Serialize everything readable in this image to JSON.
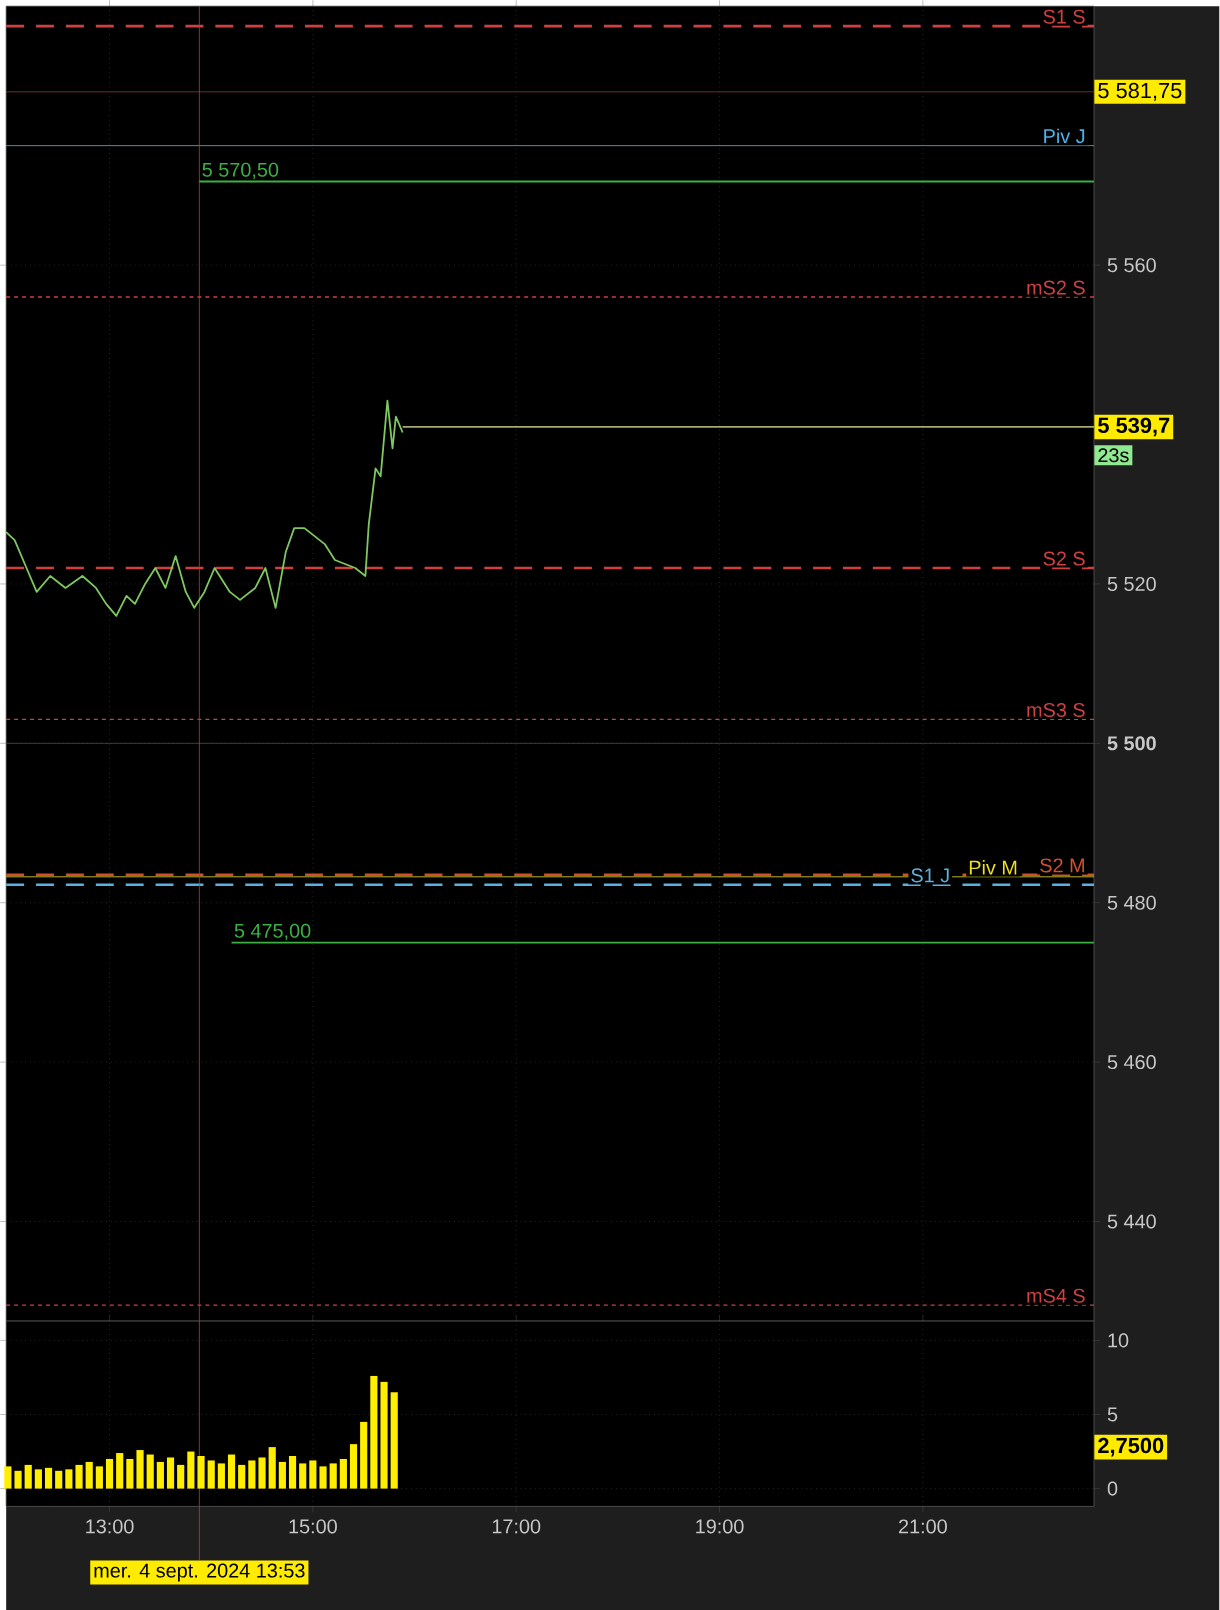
{
  "chart_data": [
    {
      "type": "line",
      "x": [
        "2024-09-04T11:59",
        "2024-09-04T12:04",
        "2024-09-04T12:11",
        "2024-09-04T12:17",
        "2024-09-04T12:25",
        "2024-09-04T12:34",
        "2024-09-04T12:44",
        "2024-09-04T12:52",
        "2024-09-04T12:58",
        "2024-09-04T13:04",
        "2024-09-04T13:10",
        "2024-09-04T13:15",
        "2024-09-04T13:21",
        "2024-09-04T13:27",
        "2024-09-04T13:33",
        "2024-09-04T13:39",
        "2024-09-04T13:45",
        "2024-09-04T13:50",
        "2024-09-04T13:56",
        "2024-09-04T14:02",
        "2024-09-04T14:11",
        "2024-09-04T14:17",
        "2024-09-04T14:26",
        "2024-09-04T14:32",
        "2024-09-04T14:38",
        "2024-09-04T14:44",
        "2024-09-04T14:49",
        "2024-09-04T14:55",
        "2024-09-04T15:01",
        "2024-09-04T15:07",
        "2024-09-04T15:13",
        "2024-09-04T15:19",
        "2024-09-04T15:25",
        "2024-09-04T15:31",
        "2024-09-04T15:33",
        "2024-09-04T15:37",
        "2024-09-04T15:40",
        "2024-09-04T15:44",
        "2024-09-04T15:47",
        "2024-09-04T15:49",
        "2024-09-04T15:53"
      ],
      "series": [
        {
          "color": "#7fc860",
          "values": [
            5526.5,
            5525.5,
            5522,
            5519,
            5521,
            5519.5,
            5521,
            5519.5,
            5517.5,
            5516,
            5518.5,
            5517.5,
            5520,
            5522,
            5519.5,
            5523.5,
            5519,
            5517,
            5519,
            5522,
            5519,
            5518,
            5519.5,
            5522,
            5517,
            5524,
            5527,
            5527,
            5526,
            5525,
            5523,
            5522.5,
            5522,
            5521,
            5527.5,
            5534.5,
            5533.5,
            5543,
            5537,
            5541,
            5539
          ]
        },
        {
          "color": "#a8a870",
          "x": [
            "2024-09-04T15:53",
            "2024-09-04T22:41"
          ],
          "values": [
            5539.7,
            5539.7
          ]
        },
        {
          "color": "#3cb043",
          "x": [
            "2024-09-04T13:53",
            "2024-09-04T22:41"
          ],
          "values": [
            5570.5,
            5570.5
          ]
        },
        {
          "color": "#3cb043",
          "x": [
            "2024-09-04T14:12",
            "2024-09-04T22:41"
          ],
          "values": [
            5475,
            5475
          ]
        }
      ],
      "xlim": [
        "2024-09-04T11:59",
        "2024-09-04T22:41"
      ],
      "ylim": [
        5427.5,
        5592.5
      ],
      "xticks": [
        {
          "value": "2024-09-04T13:00",
          "label": null
        },
        {
          "value": "2024-09-04T15:00",
          "label": null
        },
        {
          "value": "2024-09-04T17:00",
          "label": null
        },
        {
          "value": "2024-09-04T19:00",
          "label": null
        },
        {
          "value": "2024-09-04T21:00",
          "label": null
        }
      ],
      "yticks": [
        {
          "value": 5440,
          "label": "5 440"
        },
        {
          "value": 5460,
          "label": "5 460"
        },
        {
          "value": 5480,
          "label": "5 480"
        },
        {
          "value": 5500,
          "label": "**5 500**"
        },
        {
          "value": 5520,
          "label": "5 520"
        },
        {
          "value": 5560,
          "label": "5 560"
        }
      ],
      "tick_labels": "y",
      "grid": true,
      "ref_lines": [
        {
          "axis": "y",
          "value": 5590,
          "label": "S1 S",
          "color": "#d04040",
          "line_style": "dashed"
        },
        {
          "axis": "y",
          "value": 5581.75,
          "color": "#8b3a3a",
          "line_style": "solid"
        },
        {
          "axis": "y",
          "value": 5575,
          "label": "Piv J",
          "color": "#4fb3ea",
          "line_style": "solid"
        },
        {
          "axis": "y",
          "value": 5556,
          "label": "mS2 S",
          "color": "#d04040",
          "line_style": "dotted"
        },
        {
          "axis": "y",
          "value": 5522,
          "label": "S2 S",
          "color": "#d04040",
          "line_style": "dashed"
        },
        {
          "axis": "y",
          "value": 5503,
          "label": "mS3 S",
          "color": "#d04040",
          "line_style": "dotted"
        },
        {
          "axis": "y",
          "value": 5500,
          "color": "#4a4a4a",
          "line_style": "solid"
        },
        {
          "axis": "y",
          "value": 5483.5,
          "label": "S2 M",
          "color": "#d05030",
          "line_style": "dashed"
        },
        {
          "axis": "y",
          "value": 5483.25,
          "label": "Piv M",
          "color": "#f0e020",
          "line_style": "solid"
        },
        {
          "axis": "y",
          "value": 5482.25,
          "label": "S1 J",
          "color": "#5ab0e0",
          "line_style": "dashed"
        },
        {
          "axis": "y",
          "value": 5429.5,
          "label": "mS4 S",
          "color": "#d04040",
          "line_style": "dotted"
        },
        {
          "axis": "x",
          "value": "2024-09-04T13:53",
          "color": "#b04040",
          "line_style": "solid"
        }
      ],
      "annotations": [
        {
          "text": "5 570,50",
          "x": "2024-09-04T13:53",
          "y": 5570.5
        },
        {
          "text": "5 475,00",
          "x": "2024-09-04T14:12",
          "y": 5475
        },
        {
          "text": "5 581,75",
          "x": "2024-09-04T22:41",
          "y": 5581.75
        },
        {
          "text": "**5 539,7**",
          "x": "2024-09-04T22:41",
          "y": 5539.7
        },
        "23s"
      ]
    },
    {
      "type": "bar",
      "x": [
        "2024-09-04T12:00",
        "2024-09-04T12:06",
        "2024-09-04T12:12",
        "2024-09-04T12:18",
        "2024-09-04T12:24",
        "2024-09-04T12:30",
        "2024-09-04T12:36",
        "2024-09-04T12:42",
        "2024-09-04T12:48",
        "2024-09-04T12:54",
        "2024-09-04T13:00",
        "2024-09-04T13:06",
        "2024-09-04T13:12",
        "2024-09-04T13:18",
        "2024-09-04T13:24",
        "2024-09-04T13:30",
        "2024-09-04T13:36",
        "2024-09-04T13:42",
        "2024-09-04T13:48",
        "2024-09-04T13:54",
        "2024-09-04T14:00",
        "2024-09-04T14:06",
        "2024-09-04T14:12",
        "2024-09-04T14:18",
        "2024-09-04T14:24",
        "2024-09-04T14:30",
        "2024-09-04T14:36",
        "2024-09-04T14:42",
        "2024-09-04T14:48",
        "2024-09-04T14:54",
        "2024-09-04T15:00",
        "2024-09-04T15:06",
        "2024-09-04T15:12",
        "2024-09-04T15:18",
        "2024-09-04T15:24",
        "2024-09-04T15:30",
        "2024-09-04T15:36",
        "2024-09-04T15:42",
        "2024-09-04T15:48"
      ],
      "series": [
        {
          "color": "#ffee00",
          "values": [
            1.5,
            1.2,
            1.6,
            1.3,
            1.4,
            1.2,
            1.3,
            1.6,
            1.8,
            1.5,
            2.0,
            2.4,
            2.0,
            2.6,
            2.3,
            1.8,
            2.1,
            1.6,
            2.5,
            2.2,
            1.9,
            1.7,
            2.3,
            1.6,
            1.9,
            2.1,
            2.8,
            1.8,
            2.2,
            1.7,
            1.9,
            1.5,
            1.7,
            2.0,
            3.0,
            4.5,
            7.6,
            7.2,
            6.5
          ]
        }
      ],
      "xlim": [
        "2024-09-04T11:59",
        "2024-09-04T22:41"
      ],
      "ylim": [
        -1.2,
        11.3
      ],
      "xticks": [
        {
          "value": "2024-09-04T13:00",
          "label": "13:00"
        },
        {
          "value": "2024-09-04T15:00",
          "label": "15:00"
        },
        {
          "value": "2024-09-04T17:00",
          "label": "17:00"
        },
        {
          "value": "2024-09-04T19:00",
          "label": "19:00"
        },
        {
          "value": "2024-09-04T21:00",
          "label": "21:00"
        }
      ],
      "yticks": [
        0,
        5,
        10
      ],
      "grid": true,
      "ref_lines": [
        {
          "axis": "x",
          "value": "2024-09-04T13:53",
          "label": "mer. 4 sept. 2024 13:53",
          "color": "#b04040",
          "line_style": "solid"
        }
      ],
      "annotations": [
        "**2,7500**"
      ]
    }
  ]
}
